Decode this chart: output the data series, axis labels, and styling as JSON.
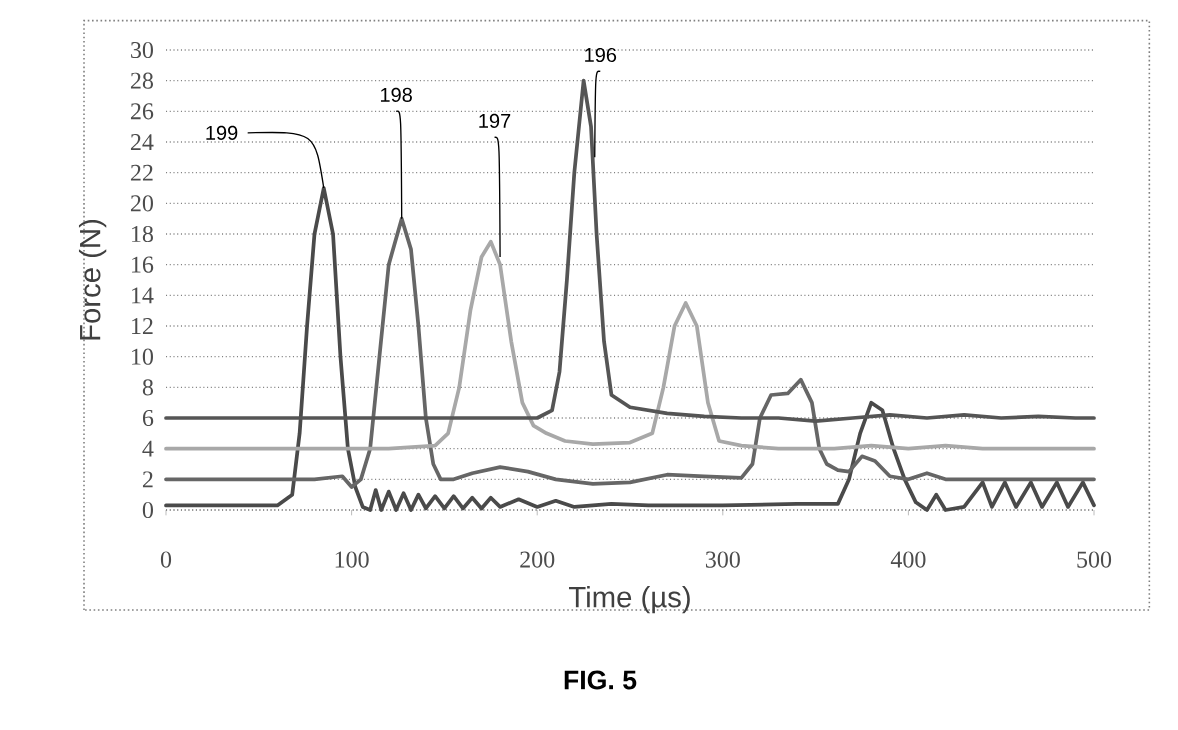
{
  "chart_data": {
    "type": "line",
    "xlabel": "Time (µs)",
    "ylabel": "Force (N)",
    "xlim": [
      0,
      500
    ],
    "ylim": [
      0,
      30
    ],
    "xticks": [
      0,
      100,
      200,
      300,
      400,
      500
    ],
    "yticks": [
      0,
      2,
      4,
      6,
      8,
      10,
      12,
      14,
      16,
      18,
      20,
      22,
      24,
      26,
      28,
      30
    ],
    "grid": "y",
    "annotations": [
      {
        "text": "199",
        "x": 85,
        "y": 21
      },
      {
        "text": "198",
        "x": 127,
        "y": 19
      },
      {
        "text": "197",
        "x": 180,
        "y": 16.5
      },
      {
        "text": "196",
        "x": 231,
        "y": 23
      },
      "FIG. 5"
    ],
    "series": [
      {
        "color": "#4a4a4a",
        "x": [
          0,
          20,
          40,
          60,
          68,
          72,
          76,
          80,
          85,
          90,
          94,
          98,
          102,
          106,
          110,
          113,
          116,
          120,
          124,
          128,
          132,
          136,
          140,
          145,
          150,
          155,
          160,
          165,
          170,
          175,
          180,
          190,
          200,
          210,
          220,
          240,
          260,
          300,
          340,
          362,
          368,
          374,
          380,
          386,
          392,
          398,
          404,
          410,
          415,
          420,
          430,
          440,
          445,
          452,
          458,
          466,
          472,
          480,
          486,
          494,
          500
        ],
        "values": [
          0.3,
          0.3,
          0.3,
          0.3,
          1,
          5,
          12,
          18,
          21,
          18,
          10,
          4,
          1.5,
          0.2,
          0,
          1.3,
          0,
          1.2,
          0,
          1.1,
          0,
          1,
          0.1,
          0.9,
          0.1,
          0.9,
          0.1,
          0.8,
          0.1,
          0.8,
          0.2,
          0.7,
          0.2,
          0.6,
          0.2,
          0.4,
          0.3,
          0.3,
          0.4,
          0.4,
          2,
          5,
          7,
          6.5,
          4,
          2,
          0.5,
          0,
          1,
          0,
          0.2,
          1.8,
          0.2,
          1.8,
          0.2,
          1.8,
          0.2,
          1.8,
          0.2,
          1.8,
          0.3
        ]
      },
      {
        "color": "#666666",
        "x": [
          0,
          20,
          40,
          60,
          80,
          95,
          100,
          105,
          110,
          115,
          120,
          127,
          132,
          136,
          140,
          144,
          148,
          155,
          165,
          180,
          195,
          210,
          230,
          250,
          270,
          290,
          310,
          316,
          320,
          326,
          335,
          342,
          348,
          352,
          356,
          362,
          368,
          375,
          382,
          390,
          400,
          410,
          420,
          440,
          460,
          480,
          500
        ],
        "values": [
          2,
          2,
          2,
          2,
          2,
          2.2,
          1.5,
          2,
          4,
          10,
          16,
          19,
          17,
          12,
          6,
          3,
          2,
          2,
          2.4,
          2.8,
          2.5,
          2,
          1.7,
          1.8,
          2.3,
          2.2,
          2.1,
          3,
          6,
          7.5,
          7.6,
          8.5,
          7,
          4,
          3,
          2.6,
          2.5,
          3.5,
          3.2,
          2.2,
          2,
          2.4,
          2,
          2,
          2,
          2,
          2
        ]
      },
      {
        "color": "#a8a8a8",
        "x": [
          0,
          40,
          80,
          120,
          145,
          152,
          158,
          164,
          170,
          175,
          180,
          186,
          192,
          198,
          205,
          215,
          230,
          250,
          262,
          268,
          274,
          280,
          286,
          292,
          298,
          310,
          330,
          360,
          380,
          400,
          420,
          440,
          460,
          480,
          500
        ],
        "values": [
          4,
          4,
          4,
          4,
          4.2,
          5,
          8,
          13,
          16.5,
          17.5,
          16,
          11,
          7,
          5.5,
          5,
          4.5,
          4.3,
          4.4,
          5,
          8,
          12,
          13.5,
          12,
          7,
          4.5,
          4.2,
          4,
          4,
          4.2,
          4,
          4.2,
          4,
          4,
          4,
          4
        ]
      },
      {
        "color": "#555555",
        "x": [
          0,
          30,
          60,
          90,
          120,
          150,
          180,
          200,
          208,
          212,
          216,
          220,
          225,
          229,
          232,
          236,
          240,
          250,
          270,
          290,
          310,
          330,
          350,
          370,
          390,
          410,
          430,
          450,
          470,
          490,
          500
        ],
        "values": [
          6,
          6,
          6,
          6,
          6,
          6,
          6,
          6,
          6.5,
          9,
          15,
          22,
          28,
          25,
          18,
          11,
          7.5,
          6.7,
          6.3,
          6.1,
          6,
          6,
          5.8,
          6,
          6.2,
          6,
          6.2,
          6,
          6.1,
          6,
          6
        ]
      }
    ]
  }
}
